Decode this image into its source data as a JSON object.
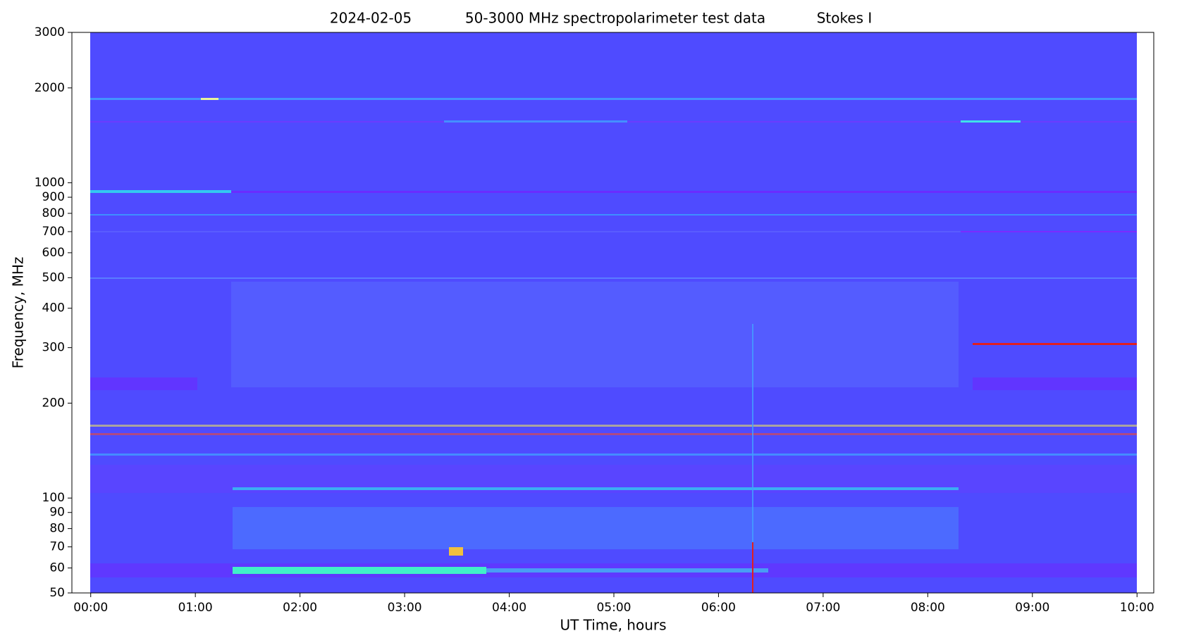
{
  "chart_data": {
    "type": "spectrogram",
    "title": [
      "2024-02-05",
      "50-3000 MHz spectropolarimeter test data",
      "Stokes I"
    ],
    "x_label": "UT Time, hours",
    "y_label": "Frequency, MHz",
    "xlim": [
      -0.18,
      10.16
    ],
    "xticks": [
      {
        "value": 0,
        "label": "00:00"
      },
      {
        "value": 1,
        "label": "01:00"
      },
      {
        "value": 2,
        "label": "02:00"
      },
      {
        "value": 3,
        "label": "03:00"
      },
      {
        "value": 4,
        "label": "04:00"
      },
      {
        "value": 5,
        "label": "05:00"
      },
      {
        "value": 6,
        "label": "06:00"
      },
      {
        "value": 7,
        "label": "07:00"
      },
      {
        "value": 8,
        "label": "08:00"
      },
      {
        "value": 9,
        "label": "09:00"
      },
      {
        "value": 10,
        "label": "10:00"
      }
    ],
    "ylim": [
      50,
      3000
    ],
    "yscale": "log",
    "yticks": [
      50,
      60,
      70,
      80,
      90,
      100,
      200,
      300,
      400,
      500,
      600,
      700,
      800,
      900,
      1000,
      2000,
      3000
    ]
  }
}
